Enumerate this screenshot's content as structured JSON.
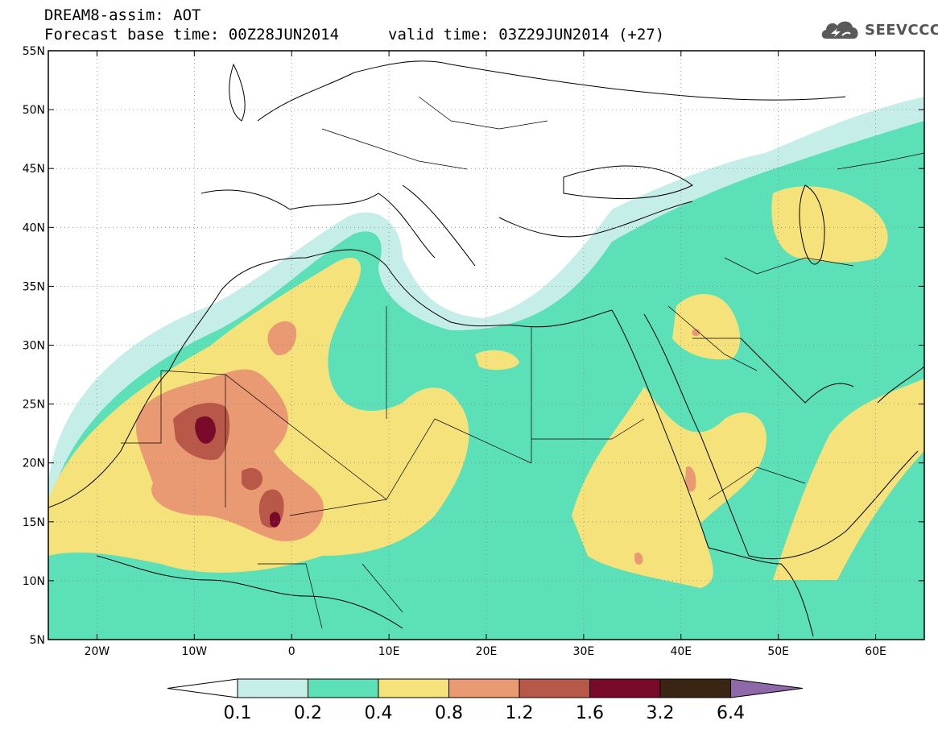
{
  "title": {
    "line1": "DREAM8-assim: AOT",
    "line2": "Forecast base time: 00Z28JUN2014",
    "valid": "valid time: 03Z29JUN2014 (+27)"
  },
  "logo": {
    "text": "SEEVCCC",
    "icon": "cloud-icon"
  },
  "map": {
    "extent": {
      "lon_min": -25,
      "lon_max": 65,
      "lat_min": 5,
      "lat_max": 55
    },
    "lat_ticks": [
      {
        "lat": 55,
        "label": "55N"
      },
      {
        "lat": 50,
        "label": "50N"
      },
      {
        "lat": 45,
        "label": "45N"
      },
      {
        "lat": 40,
        "label": "40N"
      },
      {
        "lat": 35,
        "label": "35N"
      },
      {
        "lat": 30,
        "label": "30N"
      },
      {
        "lat": 25,
        "label": "25N"
      },
      {
        "lat": 20,
        "label": "20N"
      },
      {
        "lat": 15,
        "label": "15N"
      },
      {
        "lat": 10,
        "label": "10N"
      },
      {
        "lat": 5,
        "label": "5N"
      }
    ],
    "lon_ticks": [
      {
        "lon": -20,
        "label": "20W"
      },
      {
        "lon": -10,
        "label": "10W"
      },
      {
        "lon": 0,
        "label": "0"
      },
      {
        "lon": 10,
        "label": "10E"
      },
      {
        "lon": 20,
        "label": "20E"
      },
      {
        "lon": 30,
        "label": "30E"
      },
      {
        "lon": 40,
        "label": "40E"
      },
      {
        "lon": 50,
        "label": "50E"
      },
      {
        "lon": 60,
        "label": "60E"
      }
    ]
  },
  "colorbar": {
    "labels": [
      "0.1",
      "0.2",
      "0.4",
      "0.8",
      "1.2",
      "1.6",
      "3.2",
      "6.4"
    ],
    "colors": [
      "#c6eee8",
      "#5be0b8",
      "#f6e27a",
      "#e99a72",
      "#b85848",
      "#7a0a2a",
      "#3a2414"
    ],
    "under_color": "#ffffff",
    "over_color": "#8e68a8"
  },
  "levels": {
    "c02": "#c6eee8",
    "c04": "#5be0b8",
    "c08": "#f6e27a",
    "c12": "#e99a72",
    "c16": "#b85848",
    "c32": "#7a0a2a"
  }
}
